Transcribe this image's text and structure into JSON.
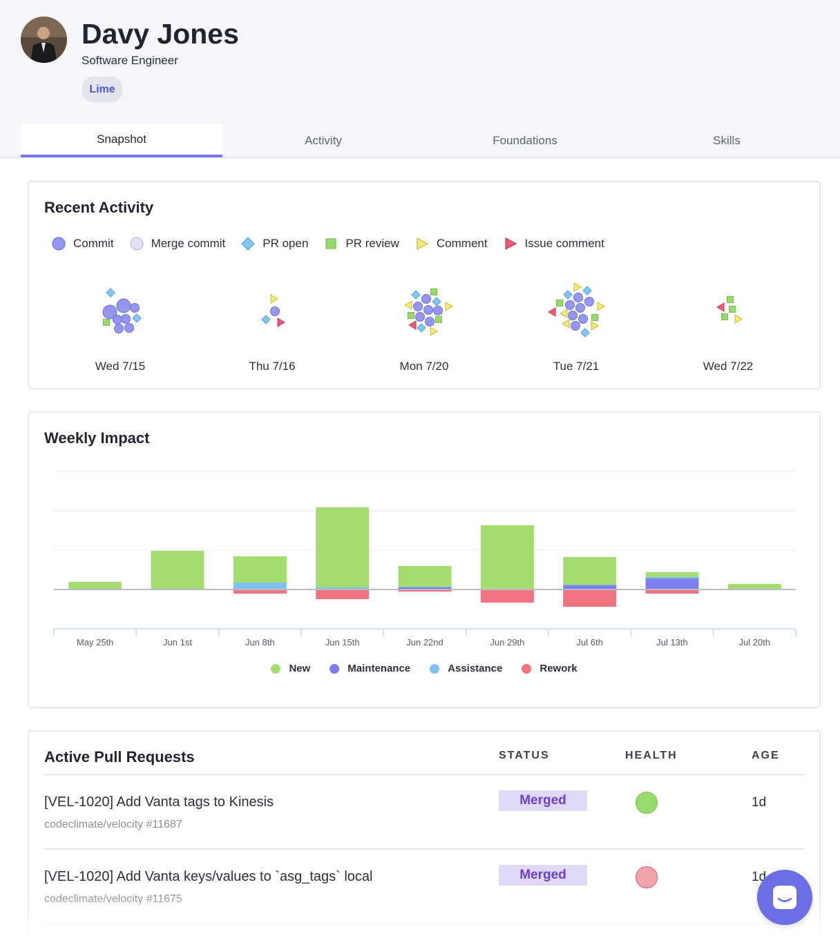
{
  "profile": {
    "name": "Davy Jones",
    "role": "Software Engineer",
    "team": "Lime"
  },
  "tabs": [
    {
      "label": "Snapshot",
      "active": true
    },
    {
      "label": "Activity",
      "active": false
    },
    {
      "label": "Foundations",
      "active": false
    },
    {
      "label": "Skills",
      "active": false
    }
  ],
  "recent_activity": {
    "title": "Recent Activity",
    "legend": [
      {
        "label": "Commit",
        "shape": "circle",
        "color": "#9596f0"
      },
      {
        "label": "Merge commit",
        "shape": "circle",
        "color": "#e4e2f2"
      },
      {
        "label": "PR open",
        "shape": "diamond",
        "color": "#83c7f0"
      },
      {
        "label": "PR review",
        "shape": "square",
        "color": "#9ad870"
      },
      {
        "label": "Comment",
        "shape": "triangle",
        "color": "#f3ea7c"
      },
      {
        "label": "Issue comment",
        "shape": "triangle",
        "color": "#ee5a73"
      }
    ],
    "days": [
      {
        "label": "Wed 7/15"
      },
      {
        "label": "Thu 7/16"
      },
      {
        "label": "Mon 7/20"
      },
      {
        "label": "Tue 7/21"
      },
      {
        "label": "Wed 7/22"
      }
    ]
  },
  "weekly_impact": {
    "title": "Weekly Impact"
  },
  "chart_data": {
    "type": "bar",
    "categories": [
      "May 25th",
      "Jun 1st",
      "Jun 8th",
      "Jun 15th",
      "Jun 22nd",
      "Jun 29th",
      "Jul 6th",
      "Jul 13th",
      "Jul 20th"
    ],
    "series": [
      {
        "name": "New",
        "color": "#a3dc6f",
        "values": [
          11,
          55,
          38,
          116,
          30,
          92,
          40,
          7,
          7
        ]
      },
      {
        "name": "Maintenance",
        "color": "#7d7fef",
        "values": [
          0,
          1,
          0,
          1,
          3,
          1,
          6,
          16,
          1
        ]
      },
      {
        "name": "Assistance",
        "color": "#7cbff0",
        "values": [
          0,
          0,
          10,
          2,
          1,
          0,
          1,
          2,
          0
        ]
      },
      {
        "name": "Rework",
        "color": "#f07380",
        "values": [
          0,
          0,
          -6,
          -14,
          -3,
          -19,
          -25,
          -6,
          0
        ]
      }
    ],
    "stacked": true,
    "ylim": [
      -57,
      171
    ],
    "grid": true,
    "legend_position": "bottom"
  },
  "pull_requests": {
    "title": "Active Pull Requests",
    "columns": {
      "status": "STATUS",
      "health": "HEALTH",
      "age": "AGE"
    },
    "rows": [
      {
        "title": "[VEL-1020] Add Vanta tags to Kinesis",
        "repo": "codeclimate/velocity #11687",
        "status": "Merged",
        "health_color": "#9ad870",
        "age": "1d"
      },
      {
        "title": "[VEL-1020] Add Vanta keys/values to `asg_tags` local",
        "repo": "codeclimate/velocity #11675",
        "status": "Merged",
        "health_color": "#f2a2aa",
        "age": "1d"
      }
    ]
  }
}
